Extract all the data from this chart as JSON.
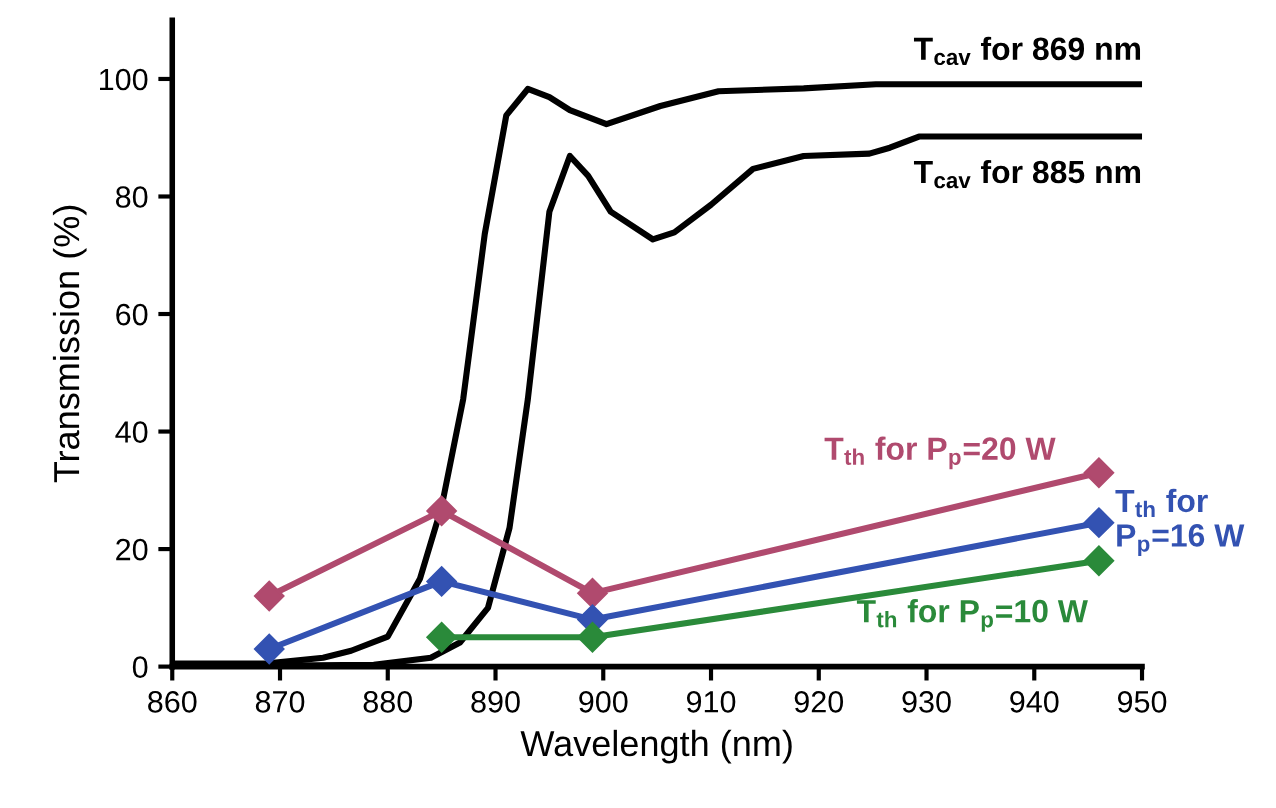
{
  "chart_data": {
    "type": "line",
    "xlabel": "Wavelength (nm)",
    "ylabel": "Transmission (%)",
    "xlim": [
      860,
      950
    ],
    "ylim": [
      0,
      110
    ],
    "xticks": [
      860,
      870,
      880,
      890,
      900,
      910,
      920,
      930,
      940,
      950
    ],
    "yticks": [
      0,
      20,
      40,
      60,
      80,
      100
    ],
    "grid": false,
    "line_style": "solid",
    "series": [
      {
        "name": "T$_{cav}$ for 869 nm",
        "color": "#000000",
        "marker": "none",
        "x": [
          860,
          868.7,
          874,
          876.6,
          880,
          883,
          885,
          887,
          889,
          891,
          893,
          895,
          896.9,
          900.3,
          905.3,
          910.7,
          918.6,
          925.3,
          950
        ],
        "values": [
          0.5,
          0.5,
          1.5,
          2.7,
          5.1,
          15,
          27.2,
          45.5,
          73.6,
          93.8,
          98.3,
          96.9,
          94.7,
          92.3,
          95.4,
          97.9,
          98.4,
          99.1,
          99.1
        ]
      },
      {
        "name": "T$_{cav}$ for 885 nm",
        "color": "#000000",
        "marker": "none",
        "x": [
          860,
          878.7,
          884,
          886.7,
          889.3,
          891.3,
          893,
          895,
          896.9,
          898.6,
          900.7,
          904.6,
          906.6,
          910,
          913.9,
          918.6,
          924.7,
          926.6,
          929.3,
          950
        ],
        "values": [
          0,
          0.3,
          1.5,
          4.1,
          10,
          23.6,
          45.5,
          77.4,
          86.9,
          83.5,
          77.4,
          72.7,
          73.9,
          78.6,
          84.7,
          86.9,
          87.3,
          88.3,
          90.2,
          90.2
        ]
      },
      {
        "name": "T$_{th}$ for P$_{p}$=20 W",
        "color": "#b04a6e",
        "marker": "diamond",
        "x": [
          869,
          885,
          899,
          946
        ],
        "values": [
          12,
          26.5,
          12.5,
          33
        ]
      },
      {
        "name": "T$_{th}$ for\nP$_{p}$=16 W",
        "color": "#3352b2",
        "marker": "diamond",
        "x": [
          869,
          885,
          899,
          946
        ],
        "values": [
          3,
          14.5,
          8,
          24.5
        ]
      },
      {
        "name": "T$_{th}$ for P$_{p}$=10 W",
        "color": "#2a8a3a",
        "marker": "diamond",
        "x": [
          885,
          899,
          946
        ],
        "values": [
          5,
          5,
          18
        ]
      }
    ]
  }
}
